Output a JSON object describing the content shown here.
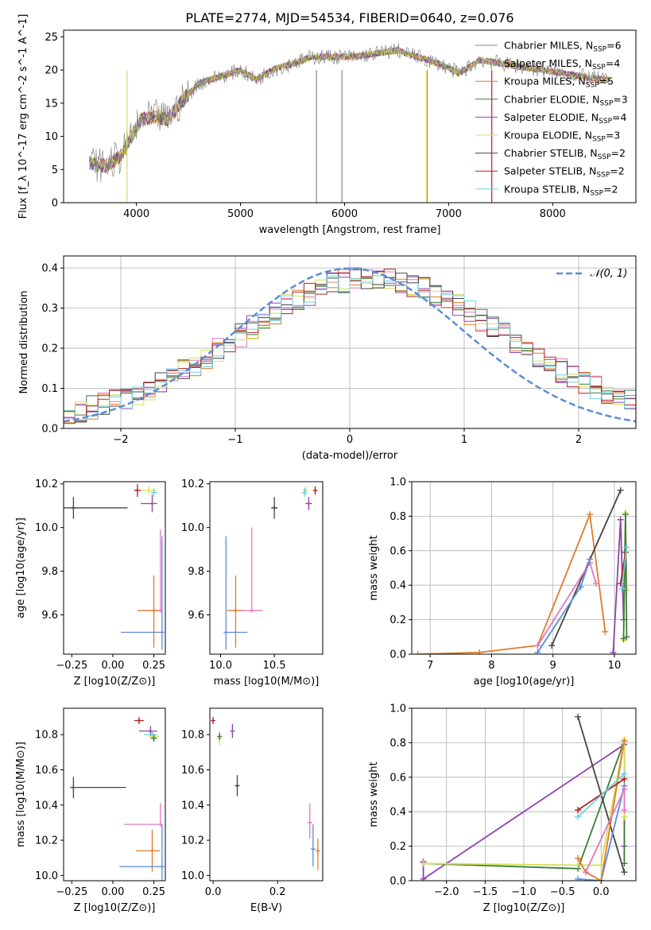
{
  "figure_title": "PLATE=2774, MJD=54534, FIBERID=0640, z=0.076",
  "chart_data": [
    {
      "type": "line",
      "xlabel": "wavelength [Angstrom, rest frame]",
      "ylabel": "Flux [f_λ 10^-17 erg cm^-2 s^-1 A^-1]",
      "xlim": [
        3300,
        8800
      ],
      "ylim": [
        0,
        26
      ],
      "xticks": [
        "4000",
        "5000",
        "6000",
        "7000",
        "8000"
      ],
      "yticks": [
        "0",
        "5",
        "10",
        "15",
        "20",
        "25"
      ],
      "legend_position": "right",
      "series": [
        {
          "name": "Chabrier MILES, N_SSP=6",
          "color": "#888888"
        },
        {
          "name": "Salpeter MILES, N_SSP=4",
          "color": "#e377c2"
        },
        {
          "name": "Kroupa MILES, N_SSP=5",
          "color": "#e07b28"
        },
        {
          "name": "Chabrier ELODIE, N_SSP=3",
          "color": "#3a7a3a"
        },
        {
          "name": "Salpeter ELODIE, N_SSP=4",
          "color": "#8e44ad"
        },
        {
          "name": "Kroupa ELODIE, N_SSP=3",
          "color": "#d4e157"
        },
        {
          "name": "Chabrier STELIB, N_SSP=2",
          "color": "#444444"
        },
        {
          "name": "Salpeter STELIB, N_SSP=2",
          "color": "#b22222"
        },
        {
          "name": "Kroupa STELIB, N_SSP=2",
          "color": "#6fd0e0"
        }
      ],
      "continuum": {
        "x": [
          3550,
          3700,
          3850,
          3950,
          4050,
          4200,
          4300,
          4450,
          4600,
          4800,
          5000,
          5150,
          5300,
          5500,
          5700,
          5900,
          6100,
          6300,
          6500,
          6700,
          6900,
          7100,
          7300,
          7500,
          7700,
          7900,
          8100,
          8300,
          8500
        ],
        "y": [
          6,
          5.5,
          7,
          10,
          12.5,
          13,
          12.5,
          15.5,
          18,
          19,
          20,
          18.5,
          20,
          21,
          22,
          22,
          22,
          22.5,
          23,
          22,
          21,
          19.5,
          21.5,
          21,
          20.5,
          20,
          19.5,
          19,
          18.5
        ]
      }
    },
    {
      "type": "line",
      "xlabel": "(data-model)/error",
      "ylabel": "Normed distribution",
      "xlim": [
        -2.5,
        2.5
      ],
      "ylim": [
        0,
        0.43
      ],
      "xticks": [
        "−2",
        "−1",
        "0",
        "1",
        "2"
      ],
      "yticks": [
        "0.0",
        "0.1",
        "0.2",
        "0.3",
        "0.4"
      ],
      "grid": true,
      "legend_position": "top-right",
      "reference_curve": {
        "name": "N(0,1)",
        "color": "#5b8dd6",
        "style": "dashed"
      }
    },
    {
      "type": "scatter",
      "xlabel": "Z [log10(Z/Z⊙)]",
      "ylabel": "age [log10(age/yr)]",
      "xlim": [
        -0.3,
        0.32
      ],
      "ylim": [
        9.42,
        10.21
      ],
      "xticks": [
        "−0.25",
        "0.00",
        "0.25"
      ],
      "yticks": [
        "9.6",
        "9.8",
        "10.0",
        "10.2"
      ],
      "points": [
        {
          "x": -0.24,
          "y": 10.09,
          "xerr": [
            0.09,
            0.33
          ],
          "yerr": [
            0.05,
            0.05
          ],
          "color": "#444444"
        },
        {
          "x": 0.15,
          "y": 10.17,
          "xerr": [
            0.02,
            0.02
          ],
          "yerr": [
            0.03,
            0.03
          ],
          "color": "#b22222"
        },
        {
          "x": 0.22,
          "y": 10.17,
          "xerr": [
            0.05,
            0.05
          ],
          "yerr": [
            0.02,
            0.02
          ],
          "color": "#d4e157"
        },
        {
          "x": 0.24,
          "y": 10.11,
          "xerr": [
            0.07,
            0.03
          ],
          "yerr": [
            0.04,
            0.04
          ],
          "color": "#8e44ad"
        },
        {
          "x": 0.25,
          "y": 10.16,
          "xerr": [
            0.02,
            0.02
          ],
          "yerr": [
            0.02,
            0.02
          ],
          "color": "#6fd0e0"
        },
        {
          "x": 0.25,
          "y": 9.62,
          "xerr": [
            0.1,
            0.05
          ],
          "yerr": [
            0.17,
            0.16
          ],
          "color": "#e07b28"
        },
        {
          "x": 0.29,
          "y": 9.62,
          "xerr": [
            0.0,
            0.0
          ],
          "yerr": [
            0.0,
            0.37
          ],
          "color": "#e377c2"
        },
        {
          "x": 0.3,
          "y": 9.52,
          "xerr": [
            0.25,
            0.0
          ],
          "yerr": [
            0.08,
            0.44
          ],
          "color": "#5b8dd6"
        }
      ]
    },
    {
      "type": "scatter",
      "xlabel": "mass [log10(M/M⊙)]",
      "ylabel": "",
      "xlim": [
        9.9,
        10.95
      ],
      "ylim": [
        9.42,
        10.21
      ],
      "xticks": [
        "10.0",
        "10.5"
      ],
      "yticks": [
        "9.6",
        "9.8",
        "10.0",
        "10.2"
      ],
      "points": [
        {
          "x": 10.5,
          "y": 10.09,
          "xerr": [
            0.03,
            0.03
          ],
          "yerr": [
            0.05,
            0.05
          ],
          "color": "#444444"
        },
        {
          "x": 10.88,
          "y": 10.17,
          "xerr": [
            0.01,
            0.01
          ],
          "yerr": [
            0.02,
            0.02
          ],
          "color": "#b22222"
        },
        {
          "x": 10.79,
          "y": 10.17,
          "xerr": [
            0.02,
            0.02
          ],
          "yerr": [
            0.02,
            0.02
          ],
          "color": "#d4e157"
        },
        {
          "x": 10.82,
          "y": 10.11,
          "xerr": [
            0.03,
            0.03
          ],
          "yerr": [
            0.03,
            0.03
          ],
          "color": "#8e44ad"
        },
        {
          "x": 10.78,
          "y": 10.16,
          "xerr": [
            0.02,
            0.02
          ],
          "yerr": [
            0.02,
            0.02
          ],
          "color": "#6fd0e0"
        },
        {
          "x": 10.14,
          "y": 9.62,
          "xerr": [
            0.08,
            0.08
          ],
          "yerr": [
            0.17,
            0.16
          ],
          "color": "#e07b28"
        },
        {
          "x": 10.29,
          "y": 9.62,
          "xerr": [
            0.1,
            0.1
          ],
          "yerr": [
            0.0,
            0.38
          ],
          "color": "#e377c2"
        },
        {
          "x": 10.05,
          "y": 9.52,
          "xerr": [
            0.0,
            0.2
          ],
          "yerr": [
            0.08,
            0.44
          ],
          "color": "#5b8dd6"
        }
      ]
    },
    {
      "type": "line",
      "xlabel": "age [log10(age/yr)]",
      "ylabel": "mass weight",
      "xlim": [
        6.7,
        10.35
      ],
      "ylim": [
        0,
        1
      ],
      "xticks": [
        "7",
        "8",
        "9",
        "10"
      ],
      "yticks": [
        "0.0",
        "0.2",
        "0.4",
        "0.6",
        "0.8",
        "1.0"
      ],
      "grid": true,
      "series": [
        {
          "color": "#e07b28",
          "x": [
            6.8,
            7.8,
            8.75,
            9.6,
            9.85
          ],
          "y": [
            0.0,
            0.01,
            0.05,
            0.81,
            0.13
          ]
        },
        {
          "color": "#444444",
          "x": [
            8.98,
            10.1
          ],
          "y": [
            0.05,
            0.95
          ]
        },
        {
          "color": "#e377c2",
          "x": [
            8.75,
            9.6,
            9.7
          ],
          "y": [
            0.05,
            0.53,
            0.41
          ]
        },
        {
          "color": "#5b8dd6",
          "x": [
            8.75,
            9.45,
            9.6
          ],
          "y": [
            0.01,
            0.39,
            0.55
          ]
        },
        {
          "color": "#8e44ad",
          "x": [
            9.98,
            10.1,
            10.15
          ],
          "y": [
            0.01,
            0.78,
            0.2
          ]
        },
        {
          "color": "#d4e157",
          "x": [
            10.15,
            10.18,
            10.2
          ],
          "y": [
            0.08,
            0.82,
            0.37
          ]
        },
        {
          "color": "#3a7a3a",
          "x": [
            10.15,
            10.18,
            10.2
          ],
          "y": [
            0.09,
            0.81,
            0.1
          ]
        },
        {
          "color": "#b22222",
          "x": [
            10.1,
            10.18
          ],
          "y": [
            0.41,
            0.59
          ]
        },
        {
          "color": "#6fd0e0",
          "x": [
            10.12,
            10.2
          ],
          "y": [
            0.38,
            0.62
          ]
        }
      ]
    },
    {
      "type": "scatter",
      "xlabel": "Z [log10(Z/Z⊙)]",
      "ylabel": "mass [log10(M/M⊙)]",
      "xlim": [
        -0.3,
        0.32
      ],
      "ylim": [
        9.97,
        10.95
      ],
      "xticks": [
        "−0.25",
        "0.00",
        "0.25"
      ],
      "yticks": [
        "10.0",
        "10.2",
        "10.4",
        "10.6",
        "10.8"
      ],
      "points": [
        {
          "x": -0.24,
          "y": 10.5,
          "xerr": [
            0.02,
            0.32
          ],
          "yerr": [
            0.06,
            0.06
          ],
          "color": "#444444"
        },
        {
          "x": 0.16,
          "y": 10.88,
          "xerr": [
            0.03,
            0.03
          ],
          "yerr": [
            0.02,
            0.02
          ],
          "color": "#b22222"
        },
        {
          "x": 0.23,
          "y": 10.82,
          "xerr": [
            0.07,
            0.04
          ],
          "yerr": [
            0.03,
            0.03
          ],
          "color": "#8e44ad"
        },
        {
          "x": 0.24,
          "y": 10.8,
          "xerr": [
            0.05,
            0.03
          ],
          "yerr": [
            0.02,
            0.02
          ],
          "color": "#6fd0e0"
        },
        {
          "x": 0.25,
          "y": 10.79,
          "xerr": [
            0.03,
            0.03
          ],
          "yerr": [
            0.03,
            0.03
          ],
          "color": "#d4e157"
        },
        {
          "x": 0.25,
          "y": 10.78,
          "xerr": [
            0.02,
            0.02
          ],
          "yerr": [
            0.02,
            0.02
          ],
          "color": "#3a7a3a"
        },
        {
          "x": 0.24,
          "y": 10.14,
          "xerr": [
            0.1,
            0.05
          ],
          "yerr": [
            0.12,
            0.12
          ],
          "color": "#e07b28"
        },
        {
          "x": 0.29,
          "y": 10.29,
          "xerr": [
            0.22,
            0.0
          ],
          "yerr": [
            0.0,
            0.12
          ],
          "color": "#e377c2"
        },
        {
          "x": 0.3,
          "y": 10.05,
          "xerr": [
            0.26,
            0.0
          ],
          "yerr": [
            0.08,
            0.24
          ],
          "color": "#5b8dd6"
        }
      ]
    },
    {
      "type": "scatter",
      "xlabel": "E(B-V)",
      "ylabel": "",
      "xlim": [
        -0.01,
        0.34
      ],
      "ylim": [
        9.97,
        10.95
      ],
      "xticks": [
        "0.0",
        "0.2"
      ],
      "yticks": [
        "10.0",
        "10.2",
        "10.4",
        "10.6",
        "10.8"
      ],
      "points": [
        {
          "x": 0.0,
          "y": 10.88,
          "yerr": [
            0.02,
            0.02
          ],
          "color": "#b22222"
        },
        {
          "x": 0.02,
          "y": 10.78,
          "yerr": [
            0.04,
            0.04
          ],
          "color": "#d4e157"
        },
        {
          "x": 0.02,
          "y": 10.79,
          "yerr": [
            0.02,
            0.02
          ],
          "color": "#3a7a3a"
        },
        {
          "x": 0.06,
          "y": 10.82,
          "yerr": [
            0.04,
            0.04
          ],
          "color": "#8e44ad"
        },
        {
          "x": 0.075,
          "y": 10.51,
          "yerr": [
            0.06,
            0.06
          ],
          "color": "#444444"
        },
        {
          "x": 0.3,
          "y": 10.3,
          "yerr": [
            0.09,
            0.11
          ],
          "color": "#e377c2"
        },
        {
          "x": 0.31,
          "y": 10.15,
          "yerr": [
            0.1,
            0.14
          ],
          "color": "#5b8dd6"
        },
        {
          "x": 0.325,
          "y": 10.14,
          "yerr": [
            0.11,
            0.07
          ],
          "color": "#e07b28"
        }
      ]
    },
    {
      "type": "line",
      "xlabel": "Z [log10(Z/Z⊙)]",
      "ylabel": "mass weight",
      "xlim": [
        -2.45,
        0.45
      ],
      "ylim": [
        0,
        1
      ],
      "xticks": [
        "−2.0",
        "−1.5",
        "−1.0",
        "−0.5",
        "0.0"
      ],
      "yticks": [
        "0.0",
        "0.2",
        "0.4",
        "0.6",
        "0.8",
        "1.0"
      ],
      "grid": true,
      "series": [
        {
          "color": "#8e44ad",
          "x": [
            -2.3,
            -2.3,
            0.3,
            0.3
          ],
          "y": [
            0.11,
            0.01,
            0.79,
            0.2
          ]
        },
        {
          "color": "#3a7a3a",
          "x": [
            -2.3,
            -0.3,
            0.3,
            0.3
          ],
          "y": [
            0.1,
            0.07,
            0.81,
            0.1
          ]
        },
        {
          "color": "#d4e157",
          "x": [
            -2.3,
            -0.3,
            0.0,
            0.3,
            0.3
          ],
          "y": [
            0.1,
            0.09,
            0.09,
            0.82,
            0.37
          ]
        },
        {
          "color": "#444444",
          "x": [
            -0.3,
            0.3
          ],
          "y": [
            0.95,
            0.05
          ]
        },
        {
          "color": "#5b8dd6",
          "x": [
            -0.3,
            0.0,
            0.3
          ],
          "y": [
            0.01,
            0.0,
            0.55
          ]
        },
        {
          "color": "#e07b28",
          "x": [
            -0.3,
            -0.2,
            0.0,
            0.3
          ],
          "y": [
            0.13,
            0.05,
            0.0,
            0.81
          ]
        },
        {
          "color": "#e377c2",
          "x": [
            -0.2,
            0.3,
            0.3
          ],
          "y": [
            0.05,
            0.53,
            0.41
          ]
        },
        {
          "color": "#b22222",
          "x": [
            -0.3,
            0.3
          ],
          "y": [
            0.41,
            0.59
          ]
        },
        {
          "color": "#6fd0e0",
          "x": [
            -0.3,
            0.3
          ],
          "y": [
            0.37,
            0.62
          ]
        }
      ]
    }
  ]
}
